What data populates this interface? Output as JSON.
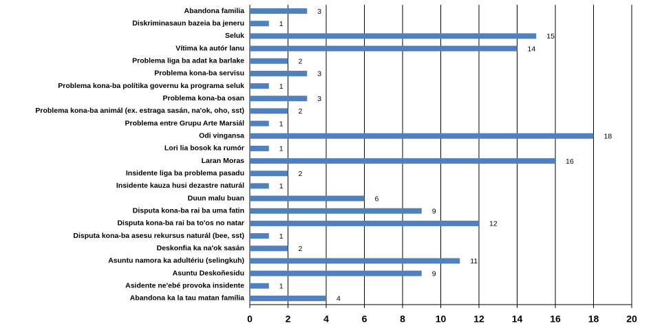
{
  "chart_data": {
    "type": "barh",
    "categories": [
      "Abandona familia",
      "Diskriminasaun bazeia ba jeneru",
      "Seluk",
      "Vítima ka autór lanu",
      "Problema liga ba adat ka barlake",
      "Problema kona-ba servisu",
      "Problema kona-ba polítika governu ka programa seluk",
      "Problema kona-ba osan",
      "Problema kona-ba animál (ex. estraga sasán, na'ok, oho, sst)",
      "Problema entre Grupu Arte Marsiál",
      "Odi vingansa",
      "Lori lia bosok ka rumór",
      "Laran Moras",
      "Insidente liga ba problema pasadu",
      "Insidente kauza husi dezastre naturál",
      "Duun malu buan",
      "Disputa kona-ba rai ba uma fatin",
      "Disputa kona-ba rai ba to'os no natar",
      "Disputa kona-ba asesu rekursus naturál (bee, sst)",
      "Deskonfia ka na'ok sasán",
      "Asuntu namora ka adultériu (selingkuh)",
      "Asuntu Deskoñesidu",
      "Asidente ne'ebé provoka insidente",
      "Abandona ka la tau matan família"
    ],
    "values": [
      3,
      1,
      15,
      14,
      2,
      3,
      1,
      3,
      2,
      1,
      18,
      1,
      16,
      2,
      1,
      6,
      9,
      12,
      1,
      2,
      11,
      9,
      1,
      4
    ],
    "color": "#4f81bd",
    "xlim": [
      0,
      20
    ],
    "xticks": [
      0,
      2,
      4,
      6,
      8,
      10,
      12,
      14,
      16,
      18,
      20
    ],
    "grid": true
  }
}
